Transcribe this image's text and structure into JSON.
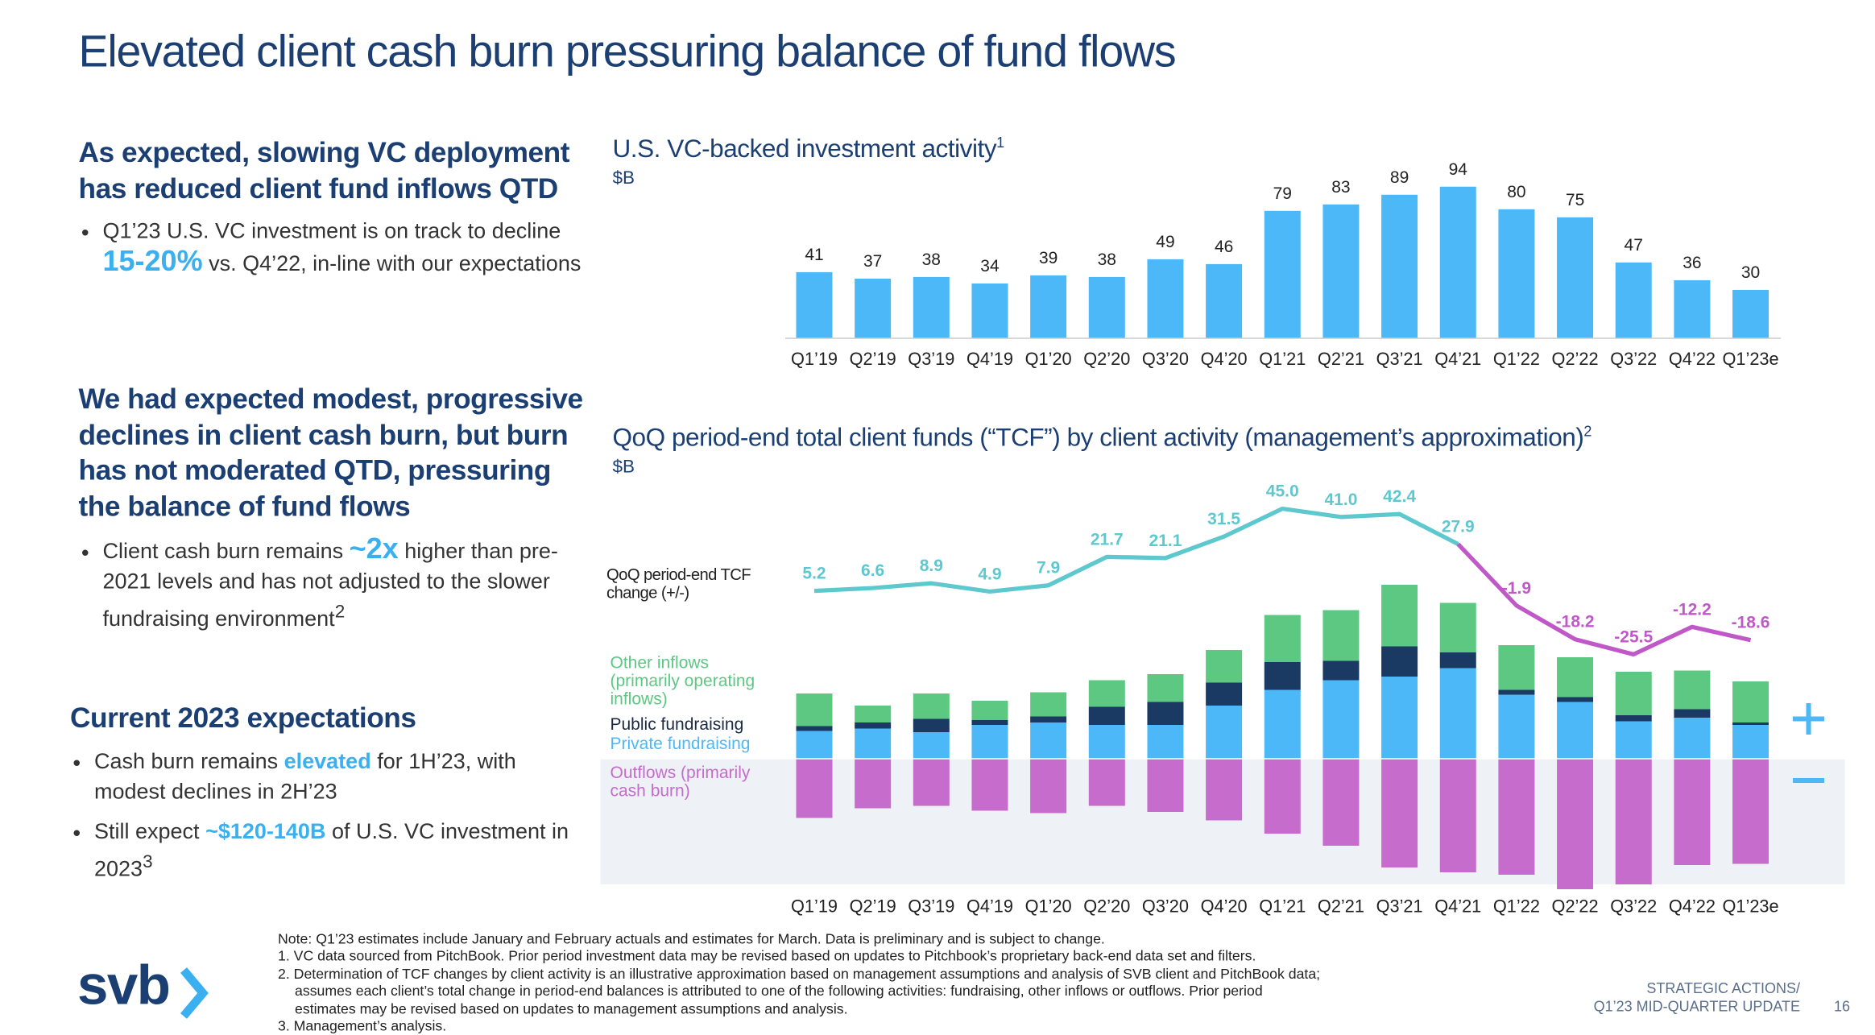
{
  "slide": {
    "title": "Elevated client cash burn pressuring balance of fund flows",
    "sections": [
      {
        "heading": "As expected, slowing VC deployment has reduced client fund inflows QTD",
        "bullets": [
          [
            {
              "text": "Q1’23 U.S. VC investment is on track to decline ",
              "style": "plain"
            },
            {
              "text": "15-20%",
              "style": "big"
            },
            {
              "text": " vs. Q4’22, in-line with our expectations",
              "style": "plain"
            }
          ]
        ]
      },
      {
        "heading": "We had expected modest, progressive declines in client cash burn, but burn has not moderated QTD, pressuring the balance of fund flows",
        "bullets": [
          [
            {
              "text": "Client cash burn remains ",
              "style": "plain"
            },
            {
              "text": "~2x",
              "style": "big"
            },
            {
              "text": " higher than pre-2021 levels and has not adjusted to the slower fundraising environment",
              "style": "plain"
            },
            {
              "text": "2",
              "style": "sup"
            }
          ]
        ]
      },
      {
        "heading": "Current 2023 expectations",
        "bullets": [
          [
            {
              "text": "Cash burn remains ",
              "style": "plain"
            },
            {
              "text": "elevated",
              "style": "highlight"
            },
            {
              "text": " for 1H’23, with modest declines in 2H’23",
              "style": "plain"
            }
          ],
          [
            {
              "text": "Still expect ",
              "style": "plain"
            },
            {
              "text": "~$120-140B",
              "style": "highlight"
            },
            {
              "text": " of U.S. VC investment in 2023",
              "style": "plain"
            },
            {
              "text": "3",
              "style": "sup"
            }
          ]
        ]
      }
    ],
    "notes": [
      "Note: Q1’23 estimates include January and February actuals and estimates for March. Data is preliminary and is subject to change.",
      "1. VC data sourced from PitchBook. Prior period investment data may be revised based on updates to Pitchbook’s proprietary back-end data set and filters.",
      "2. Determination of TCF changes by client activity is an illustrative approximation based on management assumptions and analysis of SVB client and PitchBook data;",
      "assumes each client’s total change in period-end balances is attributed to one of the following activities: fundraising, other inflows or outflows. Prior period",
      "estimates may be revised based on updates to management assumptions and analysis.",
      "3. Management’s analysis."
    ],
    "logo": "svb",
    "footer": [
      "STRATEGIC ACTIONS/",
      "Q1’23 MID-QUARTER UPDATE"
    ],
    "page": "16"
  },
  "chart_data": [
    {
      "type": "bar",
      "title": "U.S. VC-backed investment activity",
      "title_note": "1",
      "subtitle": "$B",
      "categories": [
        "Q1’19",
        "Q2’19",
        "Q3’19",
        "Q4’19",
        "Q1’20",
        "Q2’20",
        "Q3’20",
        "Q4’20",
        "Q1’21",
        "Q2’21",
        "Q3’21",
        "Q4’21",
        "Q1’22",
        "Q2’22",
        "Q3’22",
        "Q4’22",
        "Q1’23e"
      ],
      "values": [
        41,
        37,
        38,
        34,
        39,
        38,
        49,
        46,
        79,
        83,
        89,
        94,
        80,
        75,
        47,
        36,
        30
      ],
      "color": "#4db8f8",
      "ylim": [
        0,
        100
      ]
    },
    {
      "type": "stacked_bar_line",
      "title": "QoQ period-end total client funds (“TCF”) by client activity (management’s approximation)",
      "title_note": "2",
      "subtitle": "$B",
      "categories": [
        "Q1’19",
        "Q2’19",
        "Q3’19",
        "Q4’19",
        "Q1’20",
        "Q2’20",
        "Q3’20",
        "Q4’20",
        "Q1’21",
        "Q2’21",
        "Q3’21",
        "Q4’21",
        "Q1’22",
        "Q2’22",
        "Q3’22",
        "Q4’22",
        "Q1’23e"
      ],
      "series": [
        {
          "name": "Private fundraising",
          "color": "#4db8f8",
          "values": [
            23,
            25,
            22,
            28,
            30,
            28,
            28,
            44,
            57,
            65,
            68,
            75,
            53,
            47,
            31,
            34,
            28
          ]
        },
        {
          "name": "Public fundraising",
          "color": "#1b3a63",
          "values": [
            4,
            5,
            11,
            4,
            5,
            15,
            19,
            19,
            23,
            16,
            25,
            13,
            4,
            4,
            5,
            7,
            2
          ]
        },
        {
          "name": "Other inflows (primarily operating inflows)",
          "color": "#5cc882",
          "values": [
            27,
            14,
            21,
            16,
            20,
            22,
            23,
            27,
            39,
            42,
            51,
            41,
            37,
            33,
            36,
            32,
            34
          ]
        },
        {
          "name": "Outflows (primarily cash burn)",
          "color": "#c56ccc",
          "values": [
            -49,
            -41,
            -39,
            -43,
            -45,
            -39,
            -44,
            -51,
            -62,
            -72,
            -90,
            -94,
            -96,
            -108,
            -104,
            -88,
            -87
          ]
        },
        {
          "name": "QoQ period-end TCF change (+/-)",
          "type": "line",
          "axis": "y2",
          "color": "#5ec8cf",
          "negative_color": "#c058c8",
          "values": [
            5.2,
            6.6,
            8.9,
            4.9,
            7.9,
            21.7,
            21.1,
            31.5,
            45.0,
            41.0,
            42.4,
            27.9,
            -1.9,
            -18.2,
            -25.5,
            -12.2,
            -18.6
          ],
          "value_labels": [
            "5.2",
            "6.6",
            "8.9",
            "4.9",
            "7.9",
            "21.7",
            "21.1",
            "31.5",
            "45.0",
            "41.0",
            "42.4",
            "27.9",
            "-1.9",
            "-18.2",
            "-25.5",
            "-12.2",
            "-18.6"
          ]
        }
      ],
      "ylim": [
        -112,
        228
      ],
      "y2lim": [
        -141.5,
        57.3
      ]
    }
  ]
}
